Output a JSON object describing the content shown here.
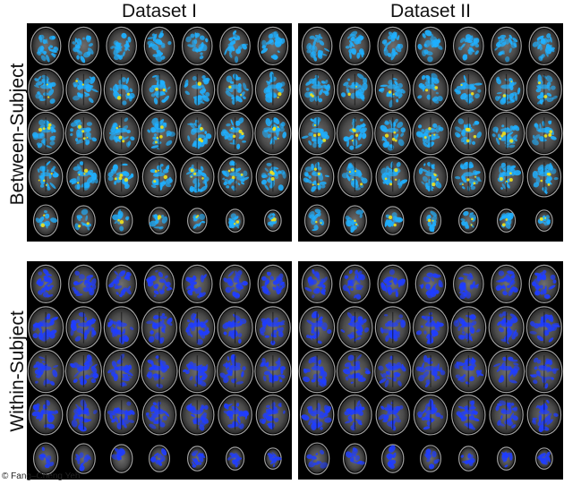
{
  "columns": [
    "Dataset I",
    "Dataset II"
  ],
  "rows": [
    "Between-Subject",
    "Within-Subject"
  ],
  "credit": "© Fang–Cheng Yeh",
  "grid": {
    "rows_per_panel": 5,
    "slices_per_row": 7
  },
  "colors": {
    "background": "#000000",
    "between_primary": "#1fb0ff",
    "between_hot": "#f2e21a",
    "within_primary": "#1f3dff"
  }
}
